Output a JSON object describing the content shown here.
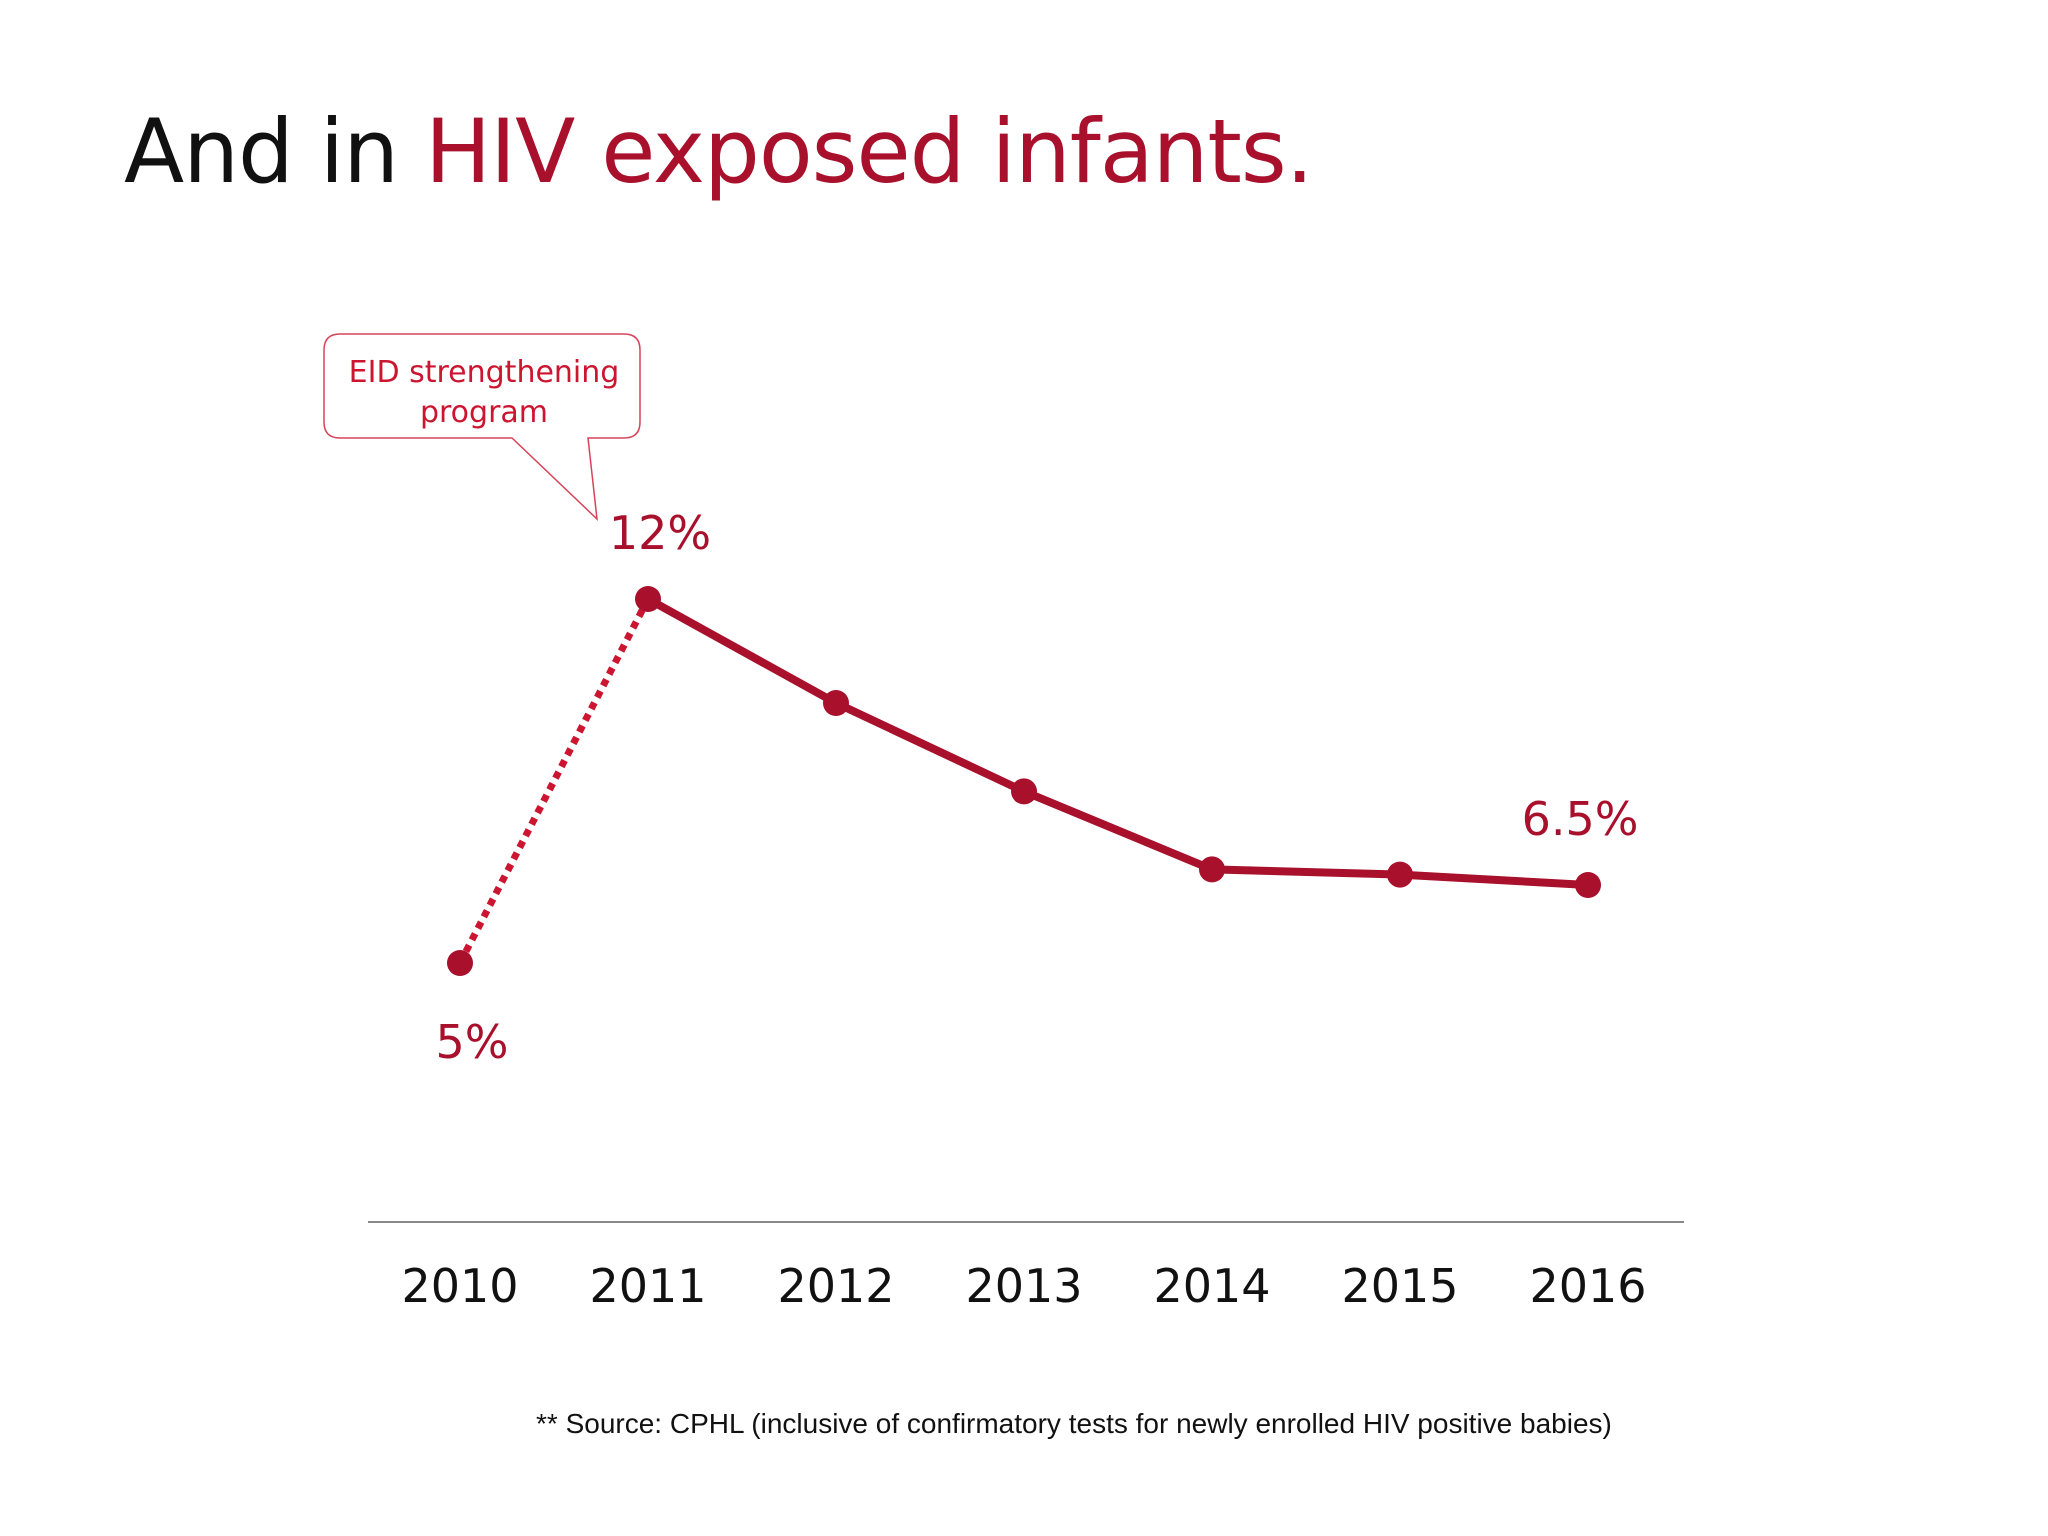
{
  "title": {
    "part1": "And in ",
    "part2": "HIV exposed infants."
  },
  "source_note": "** Source: CPHL (inclusive of confirmatory tests for newly enrolled HIV positive babies)",
  "colors": {
    "series": "#a8102c",
    "dotted": "#cc1530",
    "callout": "#cc1530",
    "axis": "#888888",
    "text": "#111111"
  },
  "chart_data": {
    "type": "line",
    "title": "",
    "xlabel": "",
    "ylabel": "",
    "x": [
      "2010",
      "2011",
      "2012",
      "2013",
      "2014",
      "2015",
      "2016"
    ],
    "values": [
      5,
      12,
      10,
      8.3,
      6.8,
      6.7,
      6.5
    ],
    "ylim": [
      0,
      13.5
    ],
    "grid": false,
    "legend": "none",
    "dotted_segment": [
      "2010",
      "2011"
    ],
    "data_labels": [
      {
        "x": "2010",
        "text": "5%",
        "position": "below"
      },
      {
        "x": "2011",
        "text": "12%",
        "position": "above"
      },
      {
        "x": "2016",
        "text": "6.5%",
        "position": "above"
      }
    ],
    "annotation": {
      "line1": "EID strengthening",
      "line2": "program",
      "points_to": "2011"
    }
  }
}
